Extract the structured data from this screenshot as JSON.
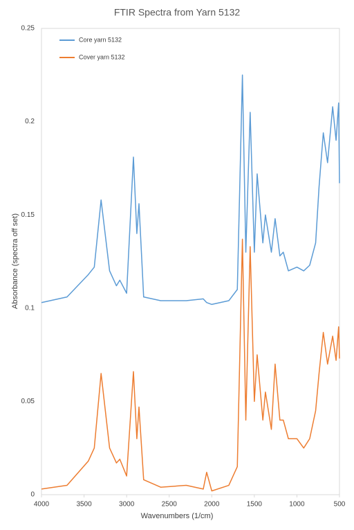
{
  "chart_data": {
    "type": "line",
    "title": "FTIR Spectra from Yarn 5132",
    "xlabel": "Wavenumbers (1/cm)",
    "ylabel": "Absorbance (spectra off set)",
    "x": [
      4000,
      3700,
      3450,
      3380,
      3300,
      3200,
      3120,
      3080,
      3000,
      2920,
      2880,
      2855,
      2800,
      2600,
      2300,
      2100,
      2060,
      2000,
      1800,
      1700,
      1640,
      1600,
      1549,
      1500,
      1467,
      1400,
      1370,
      1300,
      1256,
      1200,
      1160,
      1100,
      1000,
      920,
      850,
      780,
      740,
      690,
      640,
      580,
      540,
      510,
      500
    ],
    "series": [
      {
        "name": "Core yarn 5132",
        "color": "#5b9bd5",
        "values": [
          0.103,
          0.106,
          0.118,
          0.122,
          0.158,
          0.12,
          0.112,
          0.115,
          0.108,
          0.181,
          0.14,
          0.156,
          0.106,
          0.104,
          0.104,
          0.105,
          0.103,
          0.102,
          0.104,
          0.11,
          0.225,
          0.13,
          0.205,
          0.13,
          0.172,
          0.135,
          0.15,
          0.13,
          0.148,
          0.128,
          0.13,
          0.12,
          0.122,
          0.12,
          0.123,
          0.135,
          0.165,
          0.194,
          0.178,
          0.208,
          0.19,
          0.21,
          0.167
        ]
      },
      {
        "name": "Cover yarn 5132",
        "color": "#ed7d31",
        "values": [
          0.003,
          0.005,
          0.018,
          0.025,
          0.065,
          0.025,
          0.017,
          0.019,
          0.01,
          0.066,
          0.03,
          0.047,
          0.008,
          0.004,
          0.005,
          0.003,
          0.012,
          0.002,
          0.005,
          0.015,
          0.137,
          0.04,
          0.133,
          0.05,
          0.075,
          0.04,
          0.055,
          0.035,
          0.07,
          0.04,
          0.04,
          0.03,
          0.03,
          0.025,
          0.03,
          0.045,
          0.065,
          0.087,
          0.07,
          0.085,
          0.072,
          0.09,
          0.073
        ]
      }
    ],
    "xlim": [
      4000,
      500
    ],
    "xticks": [
      4000,
      3500,
      3000,
      2500,
      2000,
      1500,
      1000,
      500
    ],
    "ylim": [
      0,
      0.25
    ],
    "yticks": [
      0,
      0.05,
      0.1,
      0.15,
      0.2,
      0.25
    ],
    "grid": false,
    "legend": "top-left"
  }
}
